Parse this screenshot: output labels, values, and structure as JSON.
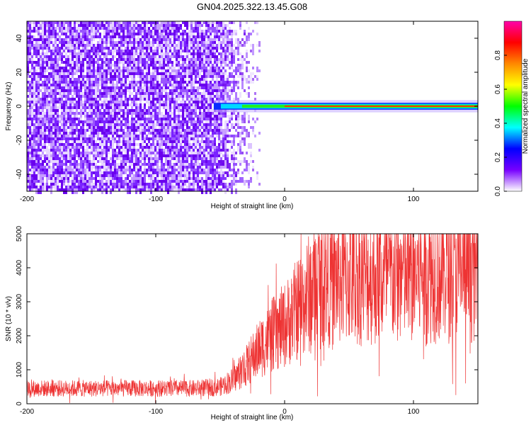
{
  "title": "GN04.2025.322.13.45.G08",
  "chart_data": [
    {
      "type": "heatmap",
      "xlabel": "Height of straight line (km)",
      "ylabel": "Frequency (Hz)",
      "xlim": [
        -200,
        150
      ],
      "ylim": [
        -50,
        50
      ],
      "xticks": [
        "-200",
        "-100",
        "0",
        "100"
      ],
      "yticks": [
        "-40",
        "-20",
        "0",
        "20",
        "40"
      ],
      "colorbar": {
        "label": "Normalized spectral amplitude",
        "range": [
          0,
          1
        ],
        "ticks": [
          "0.0",
          "0.2",
          "0.4",
          "0.6",
          "0.8"
        ],
        "colors": [
          "#ffffff",
          "#7700ff",
          "#0000ff",
          "#00ffff",
          "#00ff00",
          "#ffff00",
          "#ff8800",
          "#ff0000",
          "#ff00aa"
        ]
      },
      "regions": [
        {
          "description": "broadband purple noise",
          "x_range": [
            -200,
            -20
          ],
          "y_range": [
            -50,
            50
          ],
          "amplitude": 0.1
        },
        {
          "description": "narrow band near 0 Hz",
          "x_range": [
            -55,
            150
          ],
          "y_center": 0,
          "half_width_hz": 2,
          "peak_amplitude": 0.95
        }
      ]
    },
    {
      "type": "line",
      "xlabel": "Height of straight line (km)",
      "ylabel": "SNR (10 * v/v)",
      "xlim": [
        -200,
        150
      ],
      "ylim": [
        0,
        5000
      ],
      "xticks": [
        "-200",
        "-100",
        "0",
        "100"
      ],
      "yticks": [
        "0",
        "1000",
        "2000",
        "3000",
        "4000",
        "5000"
      ],
      "color": "#ee3333",
      "trend": {
        "x": [
          -200,
          -150,
          -100,
          -70,
          -50,
          -40,
          -30,
          -20,
          -10,
          0,
          10,
          20,
          30,
          50,
          80,
          110,
          150
        ],
        "y": [
          450,
          450,
          450,
          450,
          500,
          700,
          1100,
          1600,
          2000,
          2300,
          2800,
          3300,
          3600,
          3750,
          3700,
          3850,
          4000
        ]
      }
    }
  ]
}
